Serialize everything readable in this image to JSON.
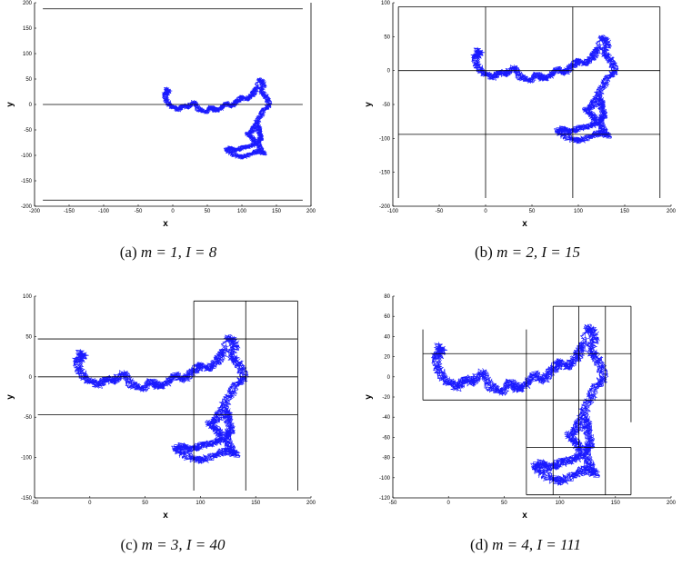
{
  "chart_data": [
    {
      "type": "line",
      "caption": {
        "tag": "(a)",
        "math": "m = 1, I = 8"
      },
      "xlabel": "x",
      "ylabel": "y",
      "xlim": [
        -200,
        200
      ],
      "ylim": [
        -200,
        200
      ],
      "xticks": [
        -200,
        -150,
        -100,
        -50,
        0,
        50,
        100,
        150,
        200
      ],
      "yticks": [
        -200,
        -150,
        -100,
        -50,
        0,
        50,
        100,
        150,
        200
      ],
      "box": true,
      "grid": false,
      "partition_lines": [
        {
          "orient": "h",
          "at": 188,
          "from": -188,
          "to": 188
        },
        {
          "orient": "h",
          "at": 0,
          "from": -188,
          "to": 188
        },
        {
          "orient": "h",
          "at": -188,
          "from": -188,
          "to": 188
        }
      ]
    },
    {
      "type": "line",
      "caption": {
        "tag": "(b)",
        "math": "m = 2, I = 15"
      },
      "xlabel": "x",
      "ylabel": "y",
      "xlim": [
        -100,
        200
      ],
      "ylim": [
        -200,
        100
      ],
      "xticks": [
        -100,
        -50,
        0,
        50,
        100,
        150,
        200
      ],
      "yticks": [
        -200,
        -150,
        -100,
        -50,
        0,
        50,
        100
      ],
      "box": false,
      "grid": false,
      "partition_lines": [
        {
          "orient": "h",
          "at": 94,
          "from": -94,
          "to": 188
        },
        {
          "orient": "h",
          "at": 0,
          "from": -94,
          "to": 188
        },
        {
          "orient": "h",
          "at": -94,
          "from": -94,
          "to": 188
        },
        {
          "orient": "v",
          "at": -94,
          "from": -188,
          "to": 94
        },
        {
          "orient": "v",
          "at": 0,
          "from": -188,
          "to": 94
        },
        {
          "orient": "v",
          "at": 94,
          "from": -188,
          "to": 94
        },
        {
          "orient": "v",
          "at": 188,
          "from": -188,
          "to": 94
        }
      ]
    },
    {
      "type": "line",
      "caption": {
        "tag": "(c)",
        "math": "m = 3, I = 40"
      },
      "xlabel": "x",
      "ylabel": "y",
      "xlim": [
        -50,
        200
      ],
      "ylim": [
        -150,
        100
      ],
      "xticks": [
        -50,
        0,
        50,
        100,
        150,
        200
      ],
      "yticks": [
        -150,
        -100,
        -50,
        0,
        50,
        100
      ],
      "box": false,
      "grid": false,
      "partition_lines": [
        {
          "orient": "h",
          "at": 94,
          "from": 94,
          "to": 188
        },
        {
          "orient": "h",
          "at": 47,
          "from": -47,
          "to": 188
        },
        {
          "orient": "h",
          "at": 0,
          "from": -47,
          "to": 188
        },
        {
          "orient": "h",
          "at": -47,
          "from": -47,
          "to": 188
        },
        {
          "orient": "v",
          "at": 94,
          "from": -141,
          "to": 94
        },
        {
          "orient": "v",
          "at": 141,
          "from": -141,
          "to": 94
        },
        {
          "orient": "v",
          "at": 188,
          "from": -141,
          "to": 94
        }
      ]
    },
    {
      "type": "line",
      "caption": {
        "tag": "(d)",
        "math": "m = 4, I = 111"
      },
      "xlabel": "x",
      "ylabel": "y",
      "xlim": [
        -50,
        200
      ],
      "ylim": [
        -120,
        80
      ],
      "xticks": [
        -50,
        0,
        50,
        100,
        150,
        200
      ],
      "yticks": [
        -120,
        -100,
        -80,
        -60,
        -40,
        -20,
        0,
        20,
        40,
        60,
        80
      ],
      "box": false,
      "grid": false,
      "partition_lines": [
        {
          "orient": "h",
          "at": 70,
          "from": 94,
          "to": 164
        },
        {
          "orient": "h",
          "at": 23,
          "from": -23,
          "to": 164
        },
        {
          "orient": "h",
          "at": -23,
          "from": -23,
          "to": 164
        },
        {
          "orient": "h",
          "at": -70,
          "from": 141,
          "to": 164
        },
        {
          "orient": "h",
          "at": -70,
          "from": 70,
          "to": 141
        },
        {
          "orient": "h",
          "at": -117,
          "from": 70,
          "to": 164
        },
        {
          "orient": "v",
          "at": -23,
          "from": -23,
          "to": 47
        },
        {
          "orient": "v",
          "at": 70,
          "from": -117,
          "to": 47
        },
        {
          "orient": "v",
          "at": 94,
          "from": -117,
          "to": 70
        },
        {
          "orient": "v",
          "at": 117,
          "from": -70,
          "to": 70
        },
        {
          "orient": "v",
          "at": 141,
          "from": -117,
          "to": 70
        },
        {
          "orient": "v",
          "at": 164,
          "from": -117,
          "to": -70
        },
        {
          "orient": "v",
          "at": 164,
          "from": -45,
          "to": 70
        }
      ]
    }
  ],
  "walk": {
    "color": "#1a1aff",
    "path": [
      [
        -10,
        30
      ],
      [
        -5,
        25
      ],
      [
        -12,
        20
      ],
      [
        -8,
        5
      ],
      [
        -2,
        -5
      ],
      [
        8,
        -10
      ],
      [
        15,
        -2
      ],
      [
        22,
        -6
      ],
      [
        30,
        5
      ],
      [
        38,
        -10
      ],
      [
        48,
        -15
      ],
      [
        55,
        -5
      ],
      [
        62,
        -12
      ],
      [
        70,
        -8
      ],
      [
        78,
        2
      ],
      [
        86,
        -4
      ],
      [
        94,
        8
      ],
      [
        100,
        14
      ],
      [
        108,
        10
      ],
      [
        115,
        20
      ],
      [
        120,
        30
      ],
      [
        126,
        50
      ],
      [
        132,
        40
      ],
      [
        128,
        25
      ],
      [
        135,
        15
      ],
      [
        140,
        0
      ],
      [
        132,
        -10
      ],
      [
        126,
        -25
      ],
      [
        120,
        -38
      ],
      [
        116,
        -50
      ],
      [
        108,
        -58
      ],
      [
        116,
        -66
      ],
      [
        120,
        -78
      ],
      [
        110,
        -82
      ],
      [
        100,
        -86
      ],
      [
        92,
        -90
      ],
      [
        84,
        -86
      ],
      [
        78,
        -90
      ],
      [
        88,
        -98
      ],
      [
        100,
        -104
      ],
      [
        112,
        -98
      ],
      [
        122,
        -92
      ],
      [
        132,
        -96
      ],
      [
        126,
        -86
      ],
      [
        124,
        -74
      ],
      [
        128,
        -64
      ],
      [
        124,
        -52
      ],
      [
        126,
        -40
      ]
    ]
  }
}
